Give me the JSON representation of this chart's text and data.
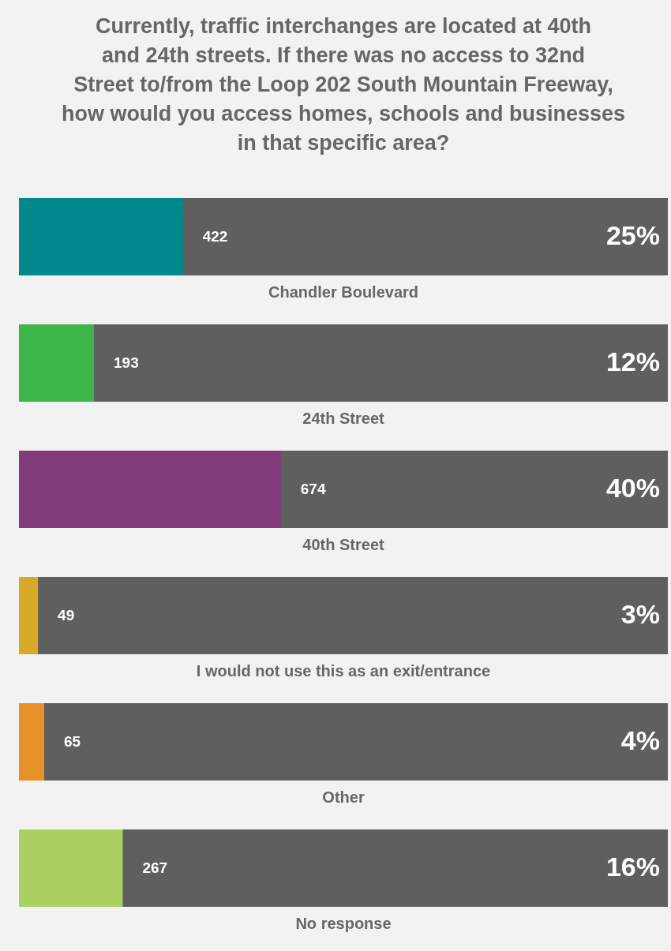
{
  "chart_data": {
    "type": "bar",
    "orientation": "horizontal",
    "title": "Currently, traffic interchanges are located at 40th and 24th streets. If there was no access to 32nd Street to/from the Loop 202 South Mountain Freeway, how would you access homes, schools and businesses in that specific area?",
    "categories": [
      "Chandler Boulevard",
      "24th Street",
      "40th Street",
      "I would not use this as an exit/entrance",
      "Other",
      "No response"
    ],
    "values": [
      422,
      193,
      674,
      49,
      65,
      267
    ],
    "colors": [
      "#00898c",
      "#3db54a",
      "#833c7b",
      "#d8aa28",
      "#e8902a",
      "#acd163"
    ],
    "xlim": [
      0,
      1670
    ],
    "data_labels": true,
    "annotations": [
      "25%",
      "12%",
      "40%",
      "3%",
      "4%",
      "16%"
    ]
  }
}
